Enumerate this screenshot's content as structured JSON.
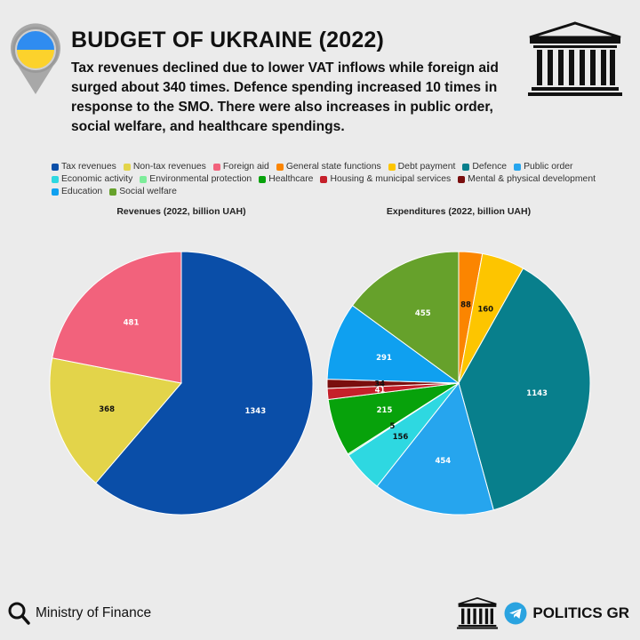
{
  "header": {
    "title": "BUDGET OF UKRAINE (2022)",
    "subtitle": "Tax revenues declined due to lower VAT inflows while foreign aid surged about 340 times. Defence spending increased 10 times in response to the SMO. There were also increases in public order, social welfare, and healthcare spendings."
  },
  "icons": {
    "flag_pin": "ukraine-flag-pin-icon",
    "temple": "temple-icon",
    "search": "search-icon",
    "telegram": "telegram-icon"
  },
  "legend": [
    {
      "label": "Tax revenues",
      "color": "#0a4ea8"
    },
    {
      "label": "Non-tax revenues",
      "color": "#e3d44a"
    },
    {
      "label": "Foreign aid",
      "color": "#f2627c"
    },
    {
      "label": "General state functions",
      "color": "#fb8500"
    },
    {
      "label": "Debt payment",
      "color": "#fdc500"
    },
    {
      "label": "Defence",
      "color": "#087f8c"
    },
    {
      "label": "Public order",
      "color": "#26a5ee"
    },
    {
      "label": "Economic activity",
      "color": "#2ed8e1"
    },
    {
      "label": "Environmental protection",
      "color": "#7ded9a"
    },
    {
      "label": "Healthcare",
      "color": "#07a20b"
    },
    {
      "label": "Housing & municipal services",
      "color": "#c5202a"
    },
    {
      "label": "Mental & physical development",
      "color": "#7a0e0e"
    },
    {
      "label": "Education",
      "color": "#0fa0f0"
    },
    {
      "label": "Social welfare",
      "color": "#66a12b"
    }
  ],
  "chart_data": [
    {
      "type": "pie",
      "title": "Revenues (2022, billion UAH)",
      "categories": [
        "Tax revenues",
        "Non-tax revenues",
        "Foreign aid"
      ],
      "values": [
        1343,
        368,
        481
      ],
      "colors": [
        "#0a4ea8",
        "#e3d44a",
        "#f2627c"
      ],
      "label_colors": [
        "#ffffff",
        "#111111",
        "#ffffff"
      ]
    },
    {
      "type": "pie",
      "title": "Expenditures (2022, billion UAH)",
      "categories": [
        "General state functions",
        "Debt payment",
        "Defence",
        "Public order",
        "Economic activity",
        "Environmental protection",
        "Healthcare",
        "Housing & municipal services",
        "Mental & physical development",
        "Education",
        "Social welfare"
      ],
      "values": [
        88,
        160,
        1143,
        454,
        156,
        5,
        215,
        41,
        34,
        291,
        455
      ],
      "colors": [
        "#fb8500",
        "#fdc500",
        "#087f8c",
        "#26a5ee",
        "#2ed8e1",
        "#7ded9a",
        "#07a20b",
        "#c5202a",
        "#7a0e0e",
        "#0fa0f0",
        "#66a12b"
      ],
      "label_colors": [
        "#111111",
        "#111111",
        "#ffffff",
        "#ffffff",
        "#111111",
        "#111111",
        "#ffffff",
        "#ffffff",
        "#111111",
        "#ffffff",
        "#ffffff"
      ]
    }
  ],
  "footer": {
    "source": "Ministry of Finance",
    "brand": "POLITICS GR"
  }
}
